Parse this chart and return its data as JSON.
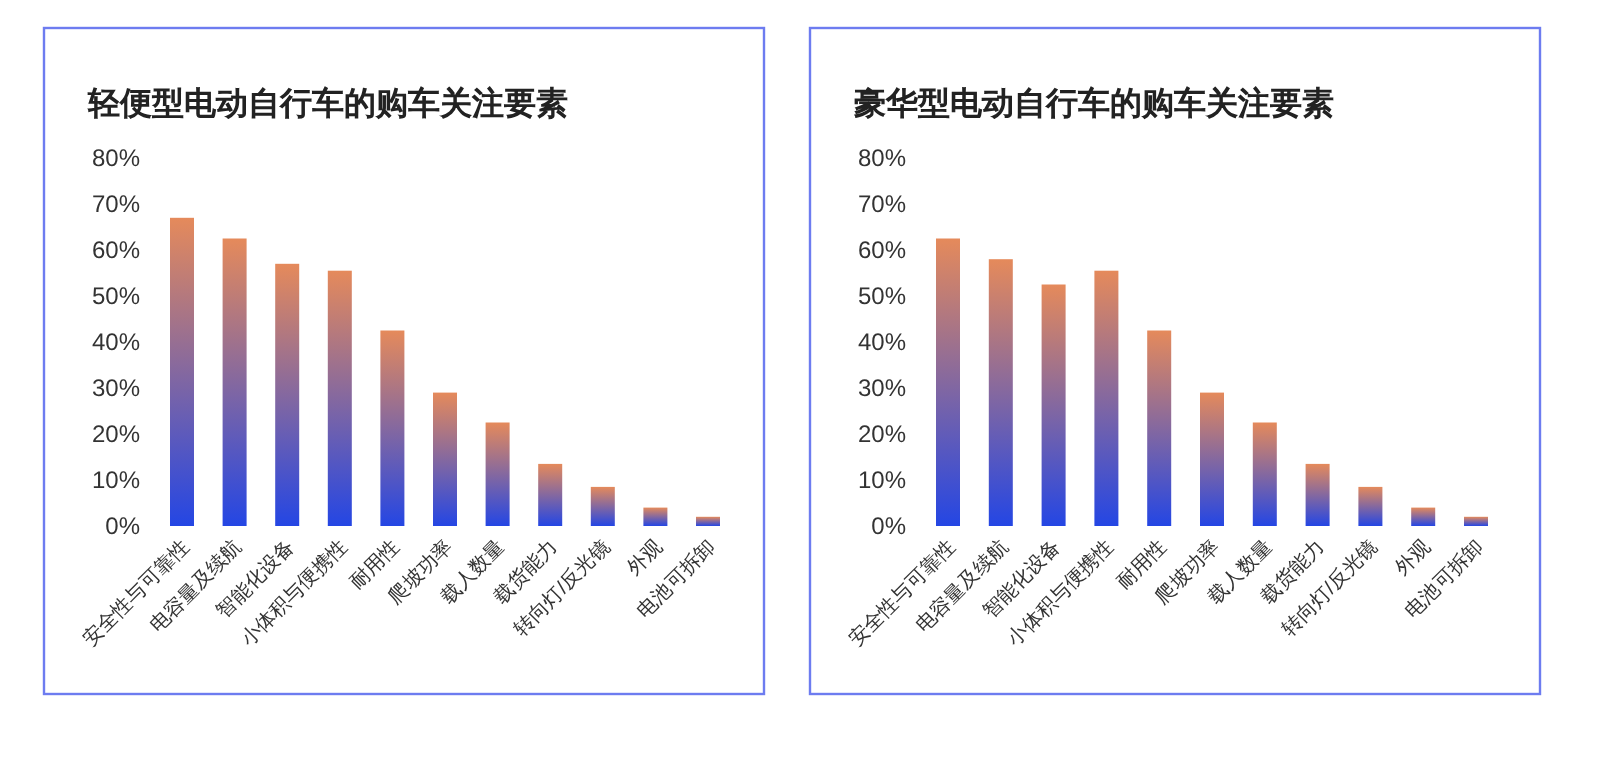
{
  "chart_data": [
    {
      "type": "bar",
      "title": "轻便型电动自行车的购车关注要素",
      "categories": [
        "安全性与可靠性",
        "电容量及续航",
        "智能化设备",
        "小体积与便携性",
        "耐用性",
        "爬坡功率",
        "载人数量",
        "载货能力",
        "转向灯/反光镜",
        "外观",
        "电池可拆卸"
      ],
      "series": [
        {
          "color": "#2446e4",
          "values": [
            67,
            62.5,
            57,
            55.5,
            42.5,
            29,
            22.5,
            13.5,
            8.5,
            4,
            2
          ]
        }
      ],
      "ylim": [
        0,
        80
      ],
      "yticks": [
        {
          "value": 0,
          "label": "0%"
        },
        {
          "value": 10,
          "label": "10%"
        },
        {
          "value": 20,
          "label": "20%"
        },
        {
          "value": 30,
          "label": "30%"
        },
        {
          "value": 40,
          "label": "40%"
        },
        {
          "value": 50,
          "label": "50%"
        },
        {
          "value": 60,
          "label": "60%"
        },
        {
          "value": 70,
          "label": "70%"
        },
        {
          "value": 80,
          "label": "80%"
        }
      ]
    },
    {
      "type": "bar",
      "title": "豪华型电动自行车的购车关注要素",
      "categories": [
        "安全性与可靠性",
        "电容量及续航",
        "智能化设备",
        "小体积与便携性",
        "耐用性",
        "爬坡功率",
        "载人数量",
        "载货能力",
        "转向灯/反光镜",
        "外观",
        "电池可拆卸"
      ],
      "series": [
        {
          "color": "#2446e4",
          "values": [
            62.5,
            58,
            52.5,
            55.5,
            42.5,
            29,
            22.5,
            13.5,
            8.5,
            4,
            2
          ]
        }
      ],
      "ylim": [
        0,
        80
      ],
      "yticks": [
        {
          "value": 0,
          "label": "0%"
        },
        {
          "value": 10,
          "label": "10%"
        },
        {
          "value": 20,
          "label": "20%"
        },
        {
          "value": 30,
          "label": "30%"
        },
        {
          "value": 40,
          "label": "40%"
        },
        {
          "value": 50,
          "label": "50%"
        },
        {
          "value": 60,
          "label": "60%"
        },
        {
          "value": 70,
          "label": "70%"
        },
        {
          "value": 80,
          "label": "80%"
        }
      ]
    }
  ]
}
